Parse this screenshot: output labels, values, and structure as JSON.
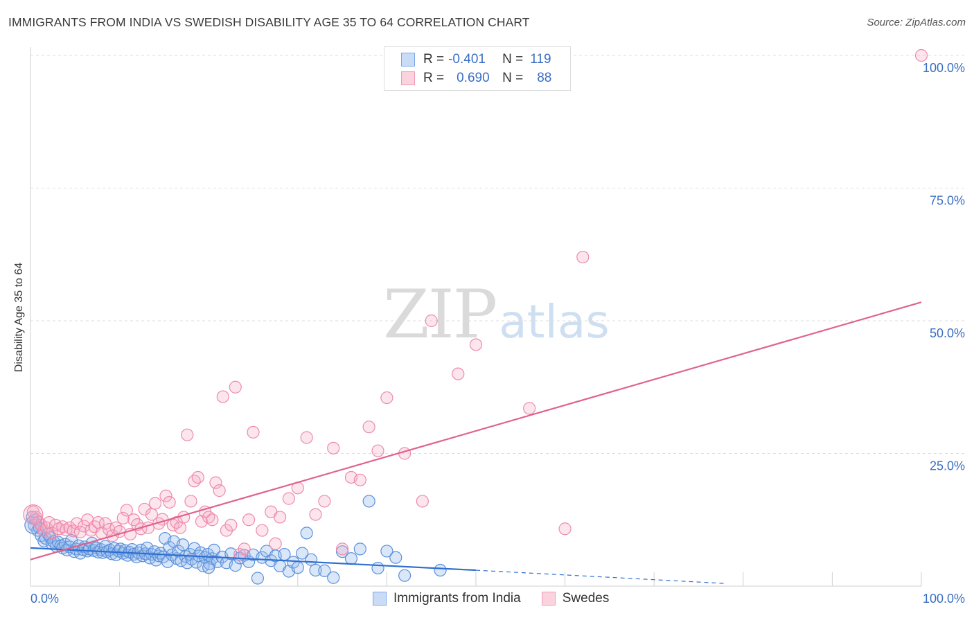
{
  "title": "IMMIGRANTS FROM INDIA VS SWEDISH DISABILITY AGE 35 TO 64 CORRELATION CHART",
  "source": "Source: ZipAtlas.com",
  "watermark": {
    "zip": "ZIP",
    "atlas": "atlas"
  },
  "legend": {
    "rows": [
      {
        "r_label": "R =",
        "r_value": "-0.401",
        "n_label": "N =",
        "n_value": "119",
        "color": "#7aa6e8",
        "fill": "#c9dbf5"
      },
      {
        "r_label": "R =",
        "r_value": "0.690",
        "n_label": "N =",
        "n_value": "88",
        "color": "#f09ab5",
        "fill": "#fbd3df"
      }
    ]
  },
  "bottom_legend": [
    {
      "name": "Immigrants from India",
      "color": "#7aa6e8",
      "fill": "#c9dbf5"
    },
    {
      "name": "Swedes",
      "color": "#f09ab5",
      "fill": "#fbd3df"
    }
  ],
  "colors": {
    "blue_stroke": "#5b8fdc",
    "blue_fill": "rgba(150,185,235,0.35)",
    "blue_line": "#2f6fd0",
    "pink_stroke": "#ee8aab",
    "pink_fill": "rgba(245,170,195,0.30)",
    "pink_line": "#e0628c",
    "tick_text": "#3a6fc4",
    "grid": "#dddddd"
  },
  "chart_data": {
    "type": "scatter",
    "title": "IMMIGRANTS FROM INDIA VS SWEDISH DISABILITY AGE 35 TO 64 CORRELATION CHART",
    "xlabel": "",
    "ylabel": "Disability Age 35 to 64",
    "xlim": [
      0,
      100
    ],
    "ylim": [
      0,
      100
    ],
    "x_tick_labels": [
      "0.0%",
      "100.0%"
    ],
    "y_ticks": [
      25,
      50,
      75,
      100
    ],
    "y_tick_labels": [
      "25.0%",
      "50.0%",
      "75.0%",
      "100.0%"
    ],
    "grid": "horizontal dashed",
    "legend_position": "top-center",
    "series": [
      {
        "name": "Immigrants from India",
        "x": [
          0.2,
          0.4,
          0.6,
          0.8,
          1.0,
          1.2,
          1.5,
          1.7,
          2.0,
          2.2,
          2.4,
          2.6,
          2.9,
          3.1,
          3.4,
          3.6,
          3.9,
          4.1,
          4.4,
          4.6,
          4.9,
          5.1,
          5.4,
          5.6,
          5.9,
          6.1,
          6.4,
          6.6,
          6.9,
          7.1,
          7.4,
          7.6,
          7.9,
          8.1,
          8.4,
          8.6,
          8.9,
          9.1,
          9.4,
          9.6,
          9.9,
          10.1,
          10.4,
          10.6,
          10.9,
          11.1,
          11.4,
          11.6,
          11.9,
          12.1,
          12.4,
          12.6,
          12.9,
          13.1,
          13.4,
          13.6,
          13.9,
          14.1,
          14.4,
          14.6,
          14.9,
          15.1,
          15.4,
          15.6,
          15.9,
          16.1,
          16.4,
          16.6,
          16.9,
          17.1,
          17.4,
          17.6,
          17.9,
          18.1,
          18.4,
          18.6,
          18.9,
          19.1,
          19.4,
          19.6,
          19.9,
          20.1,
          20.4,
          20.6,
          21.0,
          21.5,
          22.0,
          22.5,
          23.0,
          23.5,
          24.0,
          24.5,
          25.0,
          25.5,
          26.0,
          26.5,
          27.0,
          27.5,
          28.0,
          28.5,
          29.0,
          29.5,
          30.0,
          30.5,
          31.0,
          31.5,
          32.0,
          33.0,
          34.0,
          35.0,
          36.0,
          37.0,
          38.0,
          39.0,
          40.0,
          41.0,
          42.0,
          46.0,
          20.0
        ],
        "y": [
          13.0,
          11.5,
          12.5,
          10.5,
          11.0,
          9.5,
          8.5,
          9.0,
          9.8,
          9.2,
          8.0,
          8.4,
          7.5,
          8.3,
          7.6,
          7.2,
          7.9,
          6.8,
          7.4,
          8.6,
          6.5,
          7.0,
          7.6,
          6.2,
          6.9,
          7.4,
          6.6,
          7.0,
          8.1,
          6.7,
          7.2,
          6.4,
          6.9,
          6.3,
          7.5,
          6.5,
          6.8,
          6.1,
          7.1,
          5.9,
          6.6,
          7.0,
          6.2,
          6.7,
          5.8,
          6.4,
          6.9,
          6.0,
          5.5,
          6.3,
          6.8,
          5.7,
          6.1,
          7.2,
          5.3,
          6.0,
          6.5,
          4.9,
          5.7,
          6.2,
          5.5,
          9.0,
          4.6,
          7.3,
          5.9,
          8.4,
          5.2,
          6.6,
          4.8,
          7.8,
          5.6,
          4.4,
          6.0,
          5.1,
          7.1,
          4.5,
          5.7,
          6.3,
          3.8,
          5.4,
          6.0,
          4.2,
          5.2,
          6.8,
          4.6,
          5.5,
          4.4,
          6.1,
          3.9,
          5.3,
          5.8,
          4.6,
          5.9,
          1.5,
          5.4,
          6.6,
          4.8,
          5.7,
          3.8,
          6.0,
          2.8,
          4.5,
          3.5,
          6.2,
          10.0,
          5.0,
          3.0,
          2.9,
          1.6,
          6.5,
          5.2,
          7.0,
          16.0,
          3.4,
          6.6,
          5.4,
          2.0,
          3.0,
          3.5
        ]
      },
      {
        "name": "Swedes",
        "x": [
          0.3,
          0.6,
          0.9,
          1.2,
          1.5,
          1.8,
          2.1,
          2.4,
          2.8,
          3.2,
          3.6,
          4.0,
          4.4,
          4.8,
          5.2,
          5.6,
          6.0,
          6.4,
          6.8,
          7.2,
          7.6,
          8.0,
          8.4,
          8.8,
          9.2,
          9.6,
          10.0,
          10.4,
          10.8,
          11.2,
          11.6,
          12.0,
          12.4,
          12.8,
          13.2,
          13.6,
          14.0,
          14.4,
          14.8,
          15.2,
          15.6,
          16.0,
          16.4,
          16.8,
          17.2,
          17.6,
          18.0,
          18.4,
          18.8,
          19.2,
          19.6,
          20.0,
          20.4,
          20.8,
          21.2,
          21.6,
          22.0,
          22.5,
          23.0,
          23.5,
          24.0,
          24.5,
          25.0,
          26.0,
          27.0,
          27.5,
          28.0,
          29.0,
          30.0,
          31.0,
          32.0,
          33.0,
          34.0,
          35.0,
          36.0,
          37.0,
          38.0,
          39.0,
          40.0,
          42.0,
          44.0,
          45.0,
          48.0,
          50.0,
          56.0,
          60.0,
          62.0,
          100.0
        ],
        "y": [
          14.0,
          13.0,
          12.0,
          11.5,
          10.5,
          11.0,
          12.0,
          10.0,
          11.5,
          10.8,
          11.2,
          10.6,
          11.0,
          10.4,
          11.8,
          10.2,
          11.3,
          12.5,
          10.5,
          11.2,
          12.0,
          10.0,
          11.8,
          10.7,
          9.5,
          11.0,
          10.3,
          12.8,
          14.3,
          9.8,
          12.5,
          11.6,
          10.8,
          14.5,
          11.0,
          13.5,
          15.6,
          11.8,
          12.6,
          17.0,
          15.8,
          11.5,
          12.0,
          11.0,
          13.0,
          28.5,
          16.0,
          19.8,
          20.5,
          12.2,
          14.0,
          13.0,
          12.5,
          19.5,
          18.0,
          35.7,
          10.5,
          11.5,
          37.5,
          6.0,
          7.0,
          12.5,
          29.0,
          10.5,
          14.0,
          8.0,
          13.0,
          16.5,
          18.5,
          28.0,
          13.5,
          16.0,
          26.0,
          7.0,
          20.5,
          20.0,
          30.0,
          25.5,
          35.5,
          25.0,
          16.0,
          50.0,
          40.0,
          45.5,
          33.5,
          10.8,
          62.0,
          100.0
        ]
      }
    ],
    "trend_lines": [
      {
        "series": "Immigrants from India",
        "x": [
          0,
          50
        ],
        "y": [
          7.2,
          3.0
        ],
        "dashed_extension": {
          "x": [
            50,
            78
          ],
          "y": [
            3.0,
            0.5
          ]
        }
      },
      {
        "series": "Swedes",
        "x": [
          0,
          100
        ],
        "y": [
          5.0,
          53.5
        ]
      }
    ]
  }
}
